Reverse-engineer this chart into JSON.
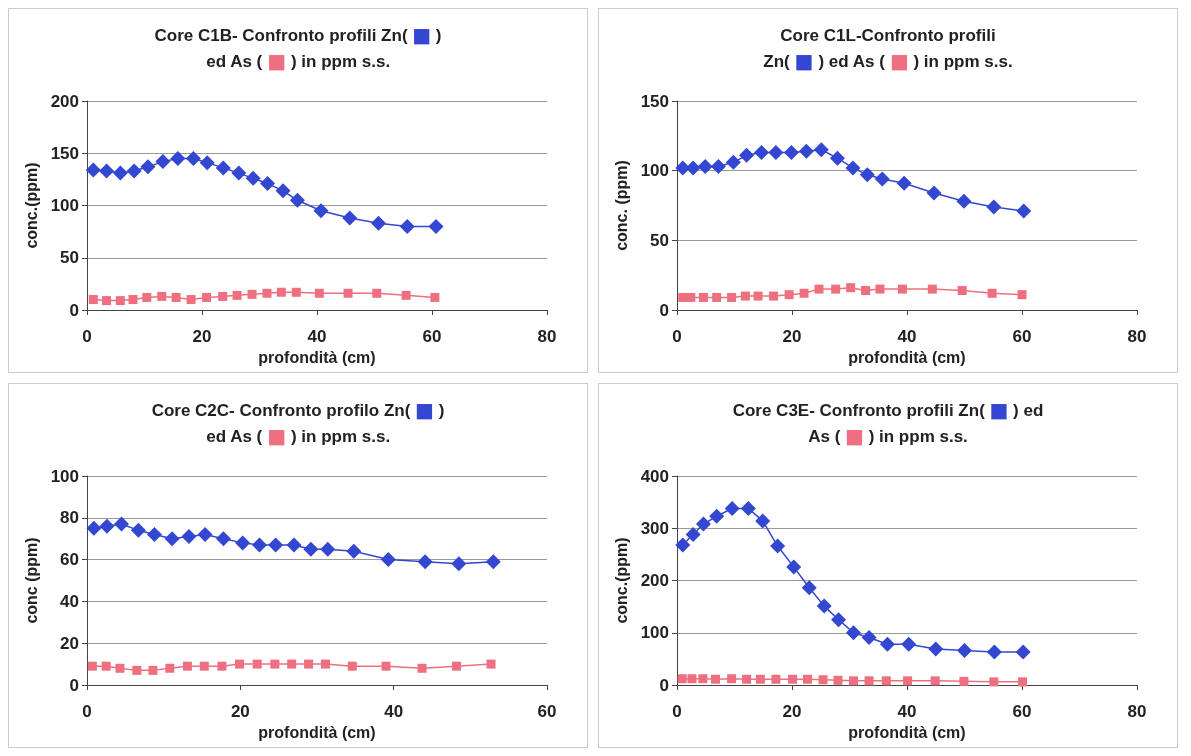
{
  "chart_data": [
    {
      "type": "line",
      "title": "Core C1B- Confronto profili Zn( ■ )\ned As ( ■ ) in ppm s.s.",
      "xlabel": "profondità (cm)",
      "ylabel": "conc.(ppm)",
      "xlim": [
        0,
        80
      ],
      "xticks": [
        0,
        20,
        40,
        60,
        80
      ],
      "ylim": [
        0,
        200
      ],
      "yticks": [
        0,
        50,
        100,
        150,
        200
      ],
      "grid": "y",
      "series": [
        {
          "color": "#3347d0",
          "marker": "diamond",
          "x": [
            1.1,
            3.4,
            5.8,
            8.2,
            10.6,
            13.2,
            15.8,
            18.5,
            20.9,
            23.7,
            26.4,
            28.9,
            31.4,
            34.1,
            36.6,
            40.7,
            45.7,
            50.7,
            55.7,
            60.7
          ],
          "values": [
            134,
            133,
            131,
            133,
            137,
            142,
            145,
            145,
            141,
            136,
            131,
            126,
            121,
            114,
            105,
            95,
            88,
            83,
            80,
            80
          ]
        },
        {
          "color": "#ee7080",
          "marker": "square",
          "x": [
            1.1,
            3.4,
            5.8,
            8.0,
            10.4,
            13.0,
            15.5,
            18.1,
            20.8,
            23.6,
            26.1,
            28.7,
            31.3,
            33.8,
            36.4,
            40.4,
            45.4,
            50.4,
            55.5,
            60.5
          ],
          "values": [
            10,
            9,
            9,
            10,
            12,
            13,
            12,
            10,
            12,
            13,
            14,
            15,
            16,
            17,
            17,
            16,
            16,
            16,
            14,
            12
          ]
        }
      ]
    },
    {
      "type": "line",
      "title": "Core C1L-Confronto profili\nZn( ■ ) ed As ( ■ ) in ppm s.s.",
      "xlabel": "profondità (cm)",
      "ylabel": "conc. (ppm)",
      "xlim": [
        0,
        80
      ],
      "xticks": [
        0,
        20,
        40,
        60,
        80
      ],
      "ylim": [
        0,
        150
      ],
      "yticks": [
        0,
        50,
        100,
        150
      ],
      "grid": "y",
      "series": [
        {
          "color": "#3347d0",
          "marker": "diamond",
          "x": [
            1.0,
            2.8,
            4.9,
            7.2,
            9.8,
            12.1,
            14.7,
            17.2,
            19.9,
            22.5,
            25.1,
            27.9,
            30.6,
            33.1,
            35.7,
            39.5,
            44.7,
            49.9,
            55.1,
            60.3
          ],
          "values": [
            102,
            102,
            103,
            103,
            106,
            111,
            113,
            113,
            113,
            114,
            115,
            109,
            102,
            97,
            94,
            91,
            84,
            78,
            74,
            71
          ]
        },
        {
          "color": "#ee7080",
          "marker": "square",
          "x": [
            1.0,
            2.4,
            4.6,
            6.9,
            9.5,
            11.9,
            14.1,
            16.8,
            19.5,
            22.1,
            24.7,
            27.6,
            30.2,
            32.8,
            35.3,
            39.2,
            44.4,
            49.6,
            54.8,
            60.0
          ],
          "values": [
            9,
            9,
            9,
            9,
            9,
            10,
            10,
            10,
            11,
            12,
            15,
            15,
            16,
            14,
            15,
            15,
            15,
            14,
            12,
            11
          ]
        }
      ]
    },
    {
      "type": "line",
      "title": "Core C2C- Confronto profilo Zn( ■ )\ned As ( ■ ) in ppm s.s.",
      "xlabel": "profondità (cm)",
      "ylabel": "conc (ppm)",
      "xlim": [
        0,
        60
      ],
      "xticks": [
        0,
        20,
        40,
        60
      ],
      "ylim": [
        0,
        100
      ],
      "yticks": [
        0,
        20,
        40,
        60,
        80,
        100
      ],
      "grid": "y",
      "series": [
        {
          "color": "#3347d0",
          "marker": "diamond",
          "x": [
            0.9,
            2.6,
            4.5,
            6.7,
            8.8,
            11.1,
            13.3,
            15.4,
            17.8,
            20.3,
            22.5,
            24.6,
            27.0,
            29.2,
            31.4,
            34.8,
            39.3,
            44.1,
            48.5,
            53.0
          ],
          "values": [
            75,
            76,
            77,
            74,
            72,
            70,
            71,
            72,
            70,
            68,
            67,
            67,
            67,
            65,
            65,
            64,
            60,
            59,
            58,
            59
          ]
        },
        {
          "color": "#ee7080",
          "marker": "square",
          "x": [
            0.7,
            2.5,
            4.3,
            6.5,
            8.6,
            10.8,
            13.1,
            15.3,
            17.6,
            19.9,
            22.2,
            24.5,
            26.7,
            28.9,
            31.1,
            34.6,
            39.0,
            43.7,
            48.2,
            52.7
          ],
          "values": [
            9,
            9,
            8,
            7,
            7,
            8,
            9,
            9,
            9,
            10,
            10,
            10,
            10,
            10,
            10,
            9,
            9,
            8,
            9,
            10
          ]
        }
      ]
    },
    {
      "type": "line",
      "title": "Core C3E- Confronto profili Zn( ■ ) ed\nAs ( ■ ) in ppm s.s.",
      "xlabel": "profondità (cm)",
      "ylabel": "conc.(ppm)",
      "xlim": [
        0,
        80
      ],
      "xticks": [
        0,
        20,
        40,
        60,
        80
      ],
      "ylim": [
        0,
        400
      ],
      "yticks": [
        0,
        100,
        200,
        300,
        400
      ],
      "grid": "y",
      "series": [
        {
          "color": "#3347d0",
          "marker": "diamond",
          "x": [
            1.0,
            2.8,
            4.6,
            6.9,
            9.6,
            12.4,
            14.9,
            17.5,
            20.3,
            23.0,
            25.6,
            28.1,
            30.7,
            33.4,
            36.6,
            40.3,
            45.0,
            50.0,
            55.2,
            60.2
          ],
          "values": [
            268,
            288,
            308,
            323,
            338,
            338,
            314,
            266,
            226,
            186,
            151,
            125,
            100,
            91,
            78,
            78,
            69,
            66,
            63,
            63
          ]
        },
        {
          "color": "#ee7080",
          "marker": "square",
          "x": [
            0.9,
            2.6,
            4.5,
            6.7,
            9.5,
            12.1,
            14.5,
            17.2,
            20.1,
            22.7,
            25.4,
            28.0,
            30.7,
            33.4,
            36.4,
            40.1,
            44.9,
            49.9,
            55.1,
            60.1
          ],
          "values": [
            12,
            12,
            12,
            11,
            12,
            11,
            11,
            11,
            11,
            11,
            10,
            9,
            8,
            8,
            8,
            8,
            8,
            7,
            6,
            6
          ]
        }
      ]
    }
  ]
}
